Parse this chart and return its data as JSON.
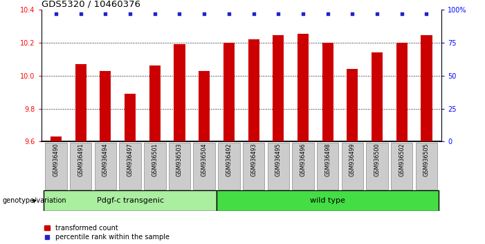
{
  "title": "GDS5320 / 10460376",
  "categories": [
    "GSM936490",
    "GSM936491",
    "GSM936494",
    "GSM936497",
    "GSM936501",
    "GSM936503",
    "GSM936504",
    "GSM936492",
    "GSM936493",
    "GSM936495",
    "GSM936496",
    "GSM936498",
    "GSM936499",
    "GSM936500",
    "GSM936502",
    "GSM936505"
  ],
  "bar_values": [
    9.63,
    10.07,
    10.03,
    9.89,
    10.06,
    10.19,
    10.03,
    10.2,
    10.22,
    10.245,
    10.255,
    10.2,
    10.04,
    10.14,
    10.2,
    10.245
  ],
  "percentile_values": [
    97,
    97,
    97,
    97,
    97,
    97,
    97,
    97,
    97,
    97,
    97,
    97,
    97,
    97,
    97,
    97
  ],
  "bar_color": "#cc0000",
  "percentile_color": "#2222cc",
  "ylim_left": [
    9.6,
    10.4
  ],
  "ylim_right": [
    0,
    100
  ],
  "yticks_left": [
    9.6,
    9.8,
    10.0,
    10.2,
    10.4
  ],
  "yticks_right": [
    0,
    25,
    50,
    75,
    100
  ],
  "ytick_labels_right": [
    "0",
    "25",
    "50",
    "75",
    "100%"
  ],
  "group1_label": "Pdgf-c transgenic",
  "group2_label": "wild type",
  "group1_count": 7,
  "group2_count": 9,
  "group1_color": "#aaeea0",
  "group2_color": "#44dd44",
  "xlabel_genotype": "genotype/variation",
  "legend_bar_label": "transformed count",
  "legend_pct_label": "percentile rank within the sample",
  "background_color": "#ffffff",
  "plot_bg_color": "#ffffff",
  "tick_bg_color": "#cccccc"
}
